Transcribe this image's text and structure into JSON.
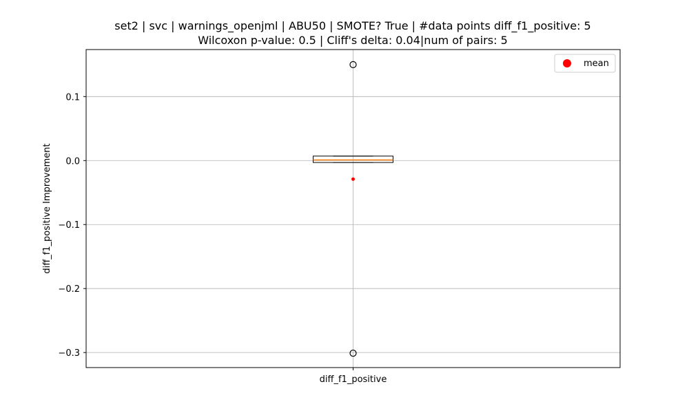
{
  "chart_data": {
    "type": "box",
    "title_lines": [
      "set2 | svc | warnings_openjml | ABU50 | SMOTE? True | #data points diff_f1_positive: 5",
      "Wilcoxon p-value: 0.5 | Cliff's delta: 0.04|num of pairs: 5"
    ],
    "ylabel": "diff_f1_positive Improvement",
    "categories": [
      "diff_f1_positive"
    ],
    "ylim": [
      -0.3235,
      0.1735
    ],
    "y_ticks": [
      0.1,
      0.0,
      -0.1,
      -0.2,
      -0.3
    ],
    "y_tick_labels": [
      "0.1",
      "0.0",
      "−0.1",
      "−0.2",
      "−0.3"
    ],
    "grid": true,
    "legend": {
      "position": "top-right",
      "entries": [
        {
          "label": "mean",
          "color": "#ff0000"
        }
      ]
    },
    "boxes": [
      {
        "category": "diff_f1_positive",
        "q1": -0.003,
        "median": 0.001,
        "q3": 0.007,
        "whisker_low": -0.003,
        "whisker_high": 0.007,
        "mean": -0.029,
        "outliers": [
          0.15,
          -0.301
        ]
      }
    ],
    "colors": {
      "median": "#ff7f0e",
      "mean": "#ff0000",
      "grid": "#b0b0b0"
    }
  }
}
